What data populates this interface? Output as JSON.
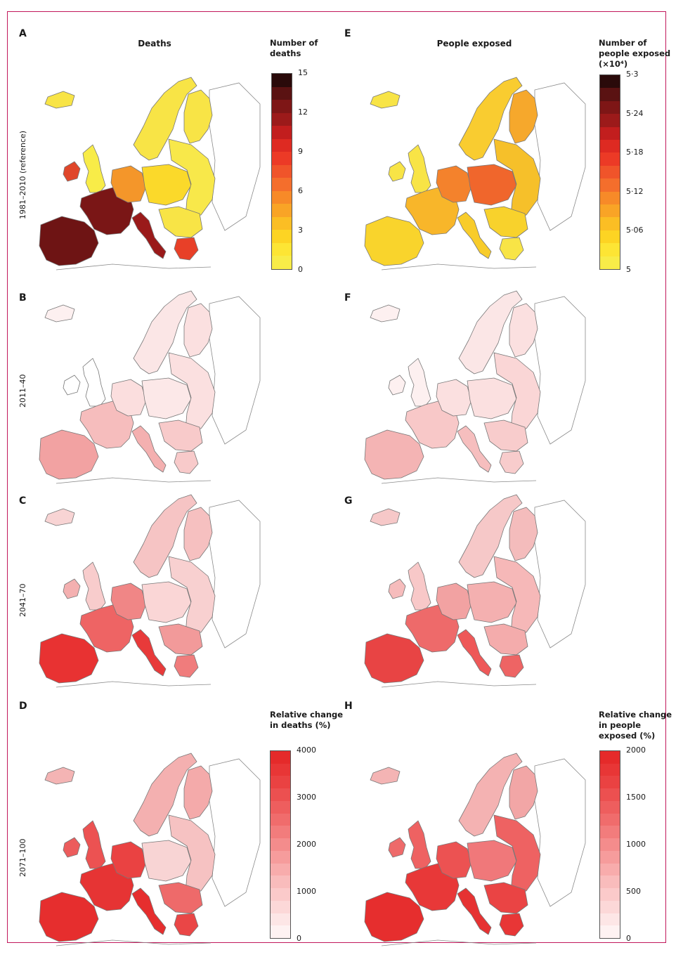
{
  "columns": [
    {
      "letter_top": "A",
      "title": "Deaths"
    },
    {
      "letter_top": "E",
      "title": "People exposed"
    }
  ],
  "panels": {
    "a": "A",
    "b": "B",
    "c": "C",
    "d": "D",
    "e": "E",
    "f": "F",
    "g": "G",
    "h": "H"
  },
  "rows": [
    {
      "label": "1981–2010 (reference)"
    },
    {
      "label": "2011–40"
    },
    {
      "label": "2041–70"
    },
    {
      "label": "2071–100"
    }
  ],
  "legends": {
    "deaths": {
      "title_line1": "Number of",
      "title_line2": "deaths",
      "ticks": [
        "15",
        "12",
        "9",
        "6",
        "3",
        "0"
      ],
      "colors": [
        "#2a0a0a",
        "#5a1212",
        "#7e1616",
        "#9c1a1a",
        "#c21e1e",
        "#de2a22",
        "#ec3a26",
        "#f0542a",
        "#f46e2c",
        "#f78a28",
        "#f9a426",
        "#fbbe24",
        "#fdd423",
        "#fde534",
        "#f8ec48"
      ]
    },
    "exposed": {
      "title_line1": "Number of",
      "title_line2": "people exposed",
      "title_line3": "(×10⁴)",
      "ticks": [
        "5·3",
        "5·24",
        "5·18",
        "5·12",
        "5·06",
        "5"
      ],
      "colors": [
        "#2a0a0a",
        "#5a1212",
        "#7e1616",
        "#9c1a1a",
        "#c21e1e",
        "#de2a22",
        "#ec3a26",
        "#f0542a",
        "#f46e2c",
        "#f78a28",
        "#f9a426",
        "#fbbe24",
        "#fdd423",
        "#fde534",
        "#f8ec48"
      ]
    },
    "rel_deaths": {
      "title_line1": "Relative change",
      "title_line2": "in deaths (%)",
      "ticks": [
        "4000",
        "3000",
        "2000",
        "1000",
        "0"
      ],
      "colors": [
        "#e52a2a",
        "#e83636",
        "#ea4242",
        "#ec5050",
        "#ee5e5e",
        "#f06c6c",
        "#f27c7c",
        "#f48c8c",
        "#f69c9c",
        "#f8acac",
        "#f9bcbc",
        "#fbcaca",
        "#fcd8d8",
        "#fde6e6",
        "#fef2f2"
      ]
    },
    "rel_exposed": {
      "title_line1": "Relative change",
      "title_line2": "in people",
      "title_line3": "exposed (%)",
      "ticks": [
        "2000",
        "1500",
        "1000",
        "500",
        "0"
      ],
      "colors": [
        "#e52a2a",
        "#e83636",
        "#ea4242",
        "#ec5050",
        "#ee5e5e",
        "#f06c6c",
        "#f27c7c",
        "#f48c8c",
        "#f69c9c",
        "#f8acac",
        "#f9bcbc",
        "#fbcaca",
        "#fcd8d8",
        "#fde6e6",
        "#fef2f2"
      ]
    }
  },
  "map_fills": {
    "A": {
      "iberia": "#6e1414",
      "france": "#7a1616",
      "italy": "#9a1a1a",
      "uk": "#f8ec48",
      "ireland": "#e0462a",
      "scandinavia": "#f8e446",
      "finland": "#f8e446",
      "germany": "#f4962a",
      "central": "#fbd92a",
      "east": "#f8e84a",
      "balkans": "#f8e446",
      "greece": "#e84028",
      "iceland": "#f8e446"
    },
    "E": {
      "iberia": "#f9d42c",
      "france": "#f8b62a",
      "italy": "#f8cc2a",
      "uk": "#f8e446",
      "ireland": "#f8e446",
      "scandinavia": "#f9cc30",
      "finland": "#f6a82c",
      "germany": "#f4822c",
      "central": "#f0662c",
      "east": "#f6c02a",
      "balkans": "#f8d22c",
      "greece": "#f8e446",
      "iceland": "#f8e446"
    },
    "B": {
      "iberia": "#f2a2a2",
      "france": "#f6bdbd",
      "italy": "#f4b0b0",
      "uk": "#ffffff",
      "ireland": "#ffffff",
      "scandinavia": "#fbe6e6",
      "finland": "#fbe0e0",
      "germany": "#fbdede",
      "central": "#fce8e8",
      "east": "#fbe0e0",
      "balkans": "#f8caca",
      "greece": "#f8caca",
      "iceland": "#fdf0f0"
    },
    "F": {
      "iberia": "#f4b4b4",
      "france": "#f8c8c8",
      "italy": "#f6bebe",
      "uk": "#fdf0f0",
      "ireland": "#fdf0f0",
      "scandinavia": "#fbe6e6",
      "finland": "#fbe0e0",
      "germany": "#fbe0e0",
      "central": "#fbe0e0",
      "east": "#fad6d6",
      "balkans": "#f8cccc",
      "greece": "#f8cccc",
      "iceland": "#fdf0f0"
    },
    "C": {
      "iberia": "#e83232",
      "france": "#ee6464",
      "italy": "#e83a3a",
      "uk": "#f8cccc",
      "ireland": "#f4b0b0",
      "scandinavia": "#f6c4c4",
      "finland": "#f6c0c0",
      "germany": "#f08686",
      "central": "#fad6d6",
      "east": "#f8d0d0",
      "balkans": "#f29a9a",
      "greece": "#f07c7c",
      "iceland": "#f8d4d4"
    },
    "G": {
      "iberia": "#e84444",
      "france": "#ee6a6a",
      "italy": "#ee5858",
      "uk": "#f8c8c8",
      "ireland": "#f6bcbc",
      "scandinavia": "#f6c8c8",
      "finland": "#f4bcbc",
      "germany": "#f2a2a2",
      "central": "#f4b0b0",
      "east": "#f6b8b8",
      "balkans": "#f4acac",
      "greece": "#ee6464",
      "iceland": "#f6c8c8"
    },
    "D": {
      "iberia": "#e62e2e",
      "france": "#e63434",
      "italy": "#e62e2e",
      "uk": "#ec5252",
      "ireland": "#ec5c5c",
      "scandinavia": "#f4b0b0",
      "finland": "#f4aaaa",
      "germany": "#ea4242",
      "central": "#f8d4d4",
      "east": "#f6c2c2",
      "balkans": "#ee6a6a",
      "greece": "#ea4646",
      "iceland": "#f4b4b4"
    },
    "H": {
      "iberia": "#e62e2e",
      "france": "#e83838",
      "italy": "#e63232",
      "uk": "#ee6262",
      "ireland": "#ee6a6a",
      "scandinavia": "#f4b2b2",
      "finland": "#f2a6a6",
      "germany": "#ec5252",
      "central": "#f0787a",
      "east": "#ee6262",
      "balkans": "#ea4444",
      "greece": "#e83636",
      "iceland": "#f4b4b4"
    }
  }
}
